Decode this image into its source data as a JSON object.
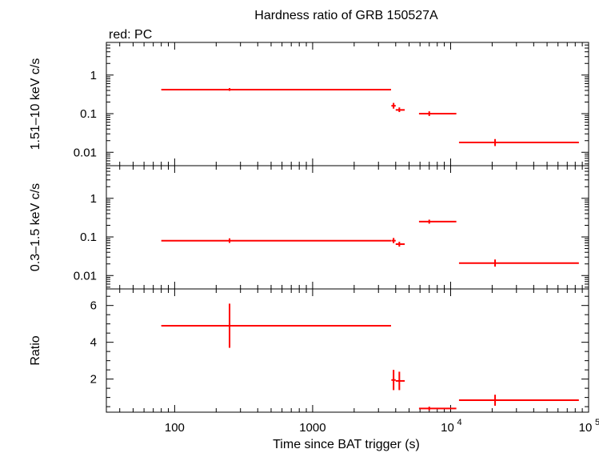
{
  "colors": {
    "series": "#ff0000",
    "axis": "#000000",
    "background": "#ffffff"
  },
  "chart_data": {
    "type": "scatter",
    "title": "Hardness ratio of GRB 150527A",
    "legend": "red: PC",
    "xlabel": "Time since BAT trigger (s)",
    "xscale": "log",
    "xlim": [
      32,
      100000
    ],
    "x_tick_labels": [
      {
        "value": 100,
        "base": "100",
        "exp": ""
      },
      {
        "value": 1000,
        "base": "1000",
        "exp": ""
      },
      {
        "value": 10000,
        "base": "10",
        "exp": "4"
      },
      {
        "value": 100000,
        "base": "10",
        "exp": "5"
      }
    ],
    "panels": [
      {
        "ylabel": "1.51–10 keV c/s",
        "yscale": "log",
        "ylim": [
          0.0045,
          7
        ],
        "y_ticks": [
          {
            "value": 1,
            "label": "1"
          },
          {
            "value": 0.1,
            "label": "0.1"
          },
          {
            "value": 0.01,
            "label": "0.01"
          }
        ],
        "points": [
          {
            "x": 250,
            "xlo": 80,
            "xhi": 3700,
            "y": 0.42,
            "ylo": 0.39,
            "yhi": 0.46
          },
          {
            "x": 3860,
            "xlo": 3720,
            "xhi": 4000,
            "y": 0.16,
            "ylo": 0.135,
            "yhi": 0.19
          },
          {
            "x": 4250,
            "xlo": 4000,
            "xhi": 4650,
            "y": 0.125,
            "ylo": 0.11,
            "yhi": 0.145
          },
          {
            "x": 7000,
            "xlo": 5900,
            "xhi": 11000,
            "y": 0.1,
            "ylo": 0.087,
            "yhi": 0.115
          },
          {
            "x": 21000,
            "xlo": 11500,
            "xhi": 85000,
            "y": 0.018,
            "ylo": 0.0145,
            "yhi": 0.022
          }
        ]
      },
      {
        "ylabel": "0.3–1.5 keV c/s",
        "yscale": "log",
        "ylim": [
          0.0045,
          7
        ],
        "y_ticks": [
          {
            "value": 1,
            "label": "1"
          },
          {
            "value": 0.1,
            "label": "0.1"
          },
          {
            "value": 0.01,
            "label": "0.01"
          }
        ],
        "points": [
          {
            "x": 250,
            "xlo": 80,
            "xhi": 3700,
            "y": 0.08,
            "ylo": 0.07,
            "yhi": 0.092
          },
          {
            "x": 3860,
            "xlo": 3720,
            "xhi": 4000,
            "y": 0.08,
            "ylo": 0.069,
            "yhi": 0.094
          },
          {
            "x": 4250,
            "xlo": 4000,
            "xhi": 4650,
            "y": 0.065,
            "ylo": 0.056,
            "yhi": 0.075
          },
          {
            "x": 7000,
            "xlo": 5900,
            "xhi": 11000,
            "y": 0.25,
            "ylo": 0.22,
            "yhi": 0.28
          },
          {
            "x": 21000,
            "xlo": 11500,
            "xhi": 85000,
            "y": 0.021,
            "ylo": 0.017,
            "yhi": 0.026
          }
        ]
      },
      {
        "ylabel": "Ratio",
        "yscale": "linear",
        "ylim": [
          0.2,
          6.9
        ],
        "y_ticks": [
          {
            "value": 2,
            "label": "2"
          },
          {
            "value": 4,
            "label": "4"
          },
          {
            "value": 6,
            "label": "6"
          }
        ],
        "points": [
          {
            "x": 250,
            "xlo": 80,
            "xhi": 3700,
            "y": 4.9,
            "ylo": 3.7,
            "yhi": 6.1
          },
          {
            "x": 3860,
            "xlo": 3720,
            "xhi": 4000,
            "y": 1.95,
            "ylo": 1.4,
            "yhi": 2.5
          },
          {
            "x": 4250,
            "xlo": 4000,
            "xhi": 4650,
            "y": 1.9,
            "ylo": 1.4,
            "yhi": 2.4
          },
          {
            "x": 7000,
            "xlo": 5900,
            "xhi": 11000,
            "y": 0.4,
            "ylo": 0.3,
            "yhi": 0.5
          },
          {
            "x": 21000,
            "xlo": 11500,
            "xhi": 85000,
            "y": 0.85,
            "ylo": 0.55,
            "yhi": 1.15
          }
        ]
      }
    ]
  }
}
